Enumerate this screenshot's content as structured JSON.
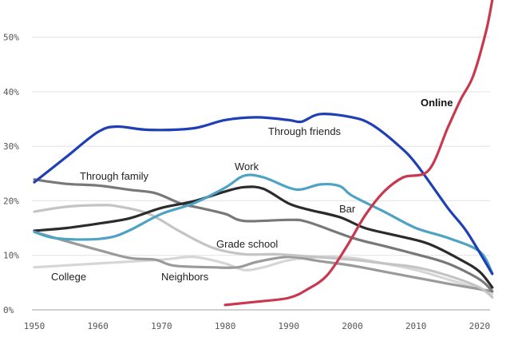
{
  "chart_data": {
    "type": "line",
    "title": "",
    "xlabel": "",
    "ylabel": "",
    "xlim": [
      1950,
      2022
    ],
    "ylim": [
      0,
      55
    ],
    "grid": true,
    "xticks": [
      {
        "value": 1950,
        "label": "1950"
      },
      {
        "value": 1960,
        "label": "1960"
      },
      {
        "value": 1970,
        "label": "1970"
      },
      {
        "value": 1980,
        "label": "1980"
      },
      {
        "value": 1990,
        "label": "1990"
      },
      {
        "value": 2000,
        "label": "2000"
      },
      {
        "value": 2010,
        "label": "2010"
      },
      {
        "value": 2020,
        "label": "2020"
      }
    ],
    "yticks": [
      {
        "value": 0,
        "label": "0%"
      },
      {
        "value": 10,
        "label": "10%"
      },
      {
        "value": 20,
        "label": "20%"
      },
      {
        "value": 30,
        "label": "30%"
      },
      {
        "value": 40,
        "label": "40%"
      },
      {
        "value": 50,
        "label": "50%"
      }
    ],
    "series": [
      {
        "name": "College",
        "color": "#d6d6d6",
        "x": [
          1950,
          1960,
          1970,
          1975,
          1980,
          1983,
          1986,
          1990,
          1995,
          2000,
          2005,
          2010,
          2015,
          2020,
          2022
        ],
        "y": [
          7.8,
          8.5,
          9.2,
          9.7,
          8.5,
          7.3,
          7.8,
          9.1,
          9.7,
          9.5,
          8.5,
          7.3,
          5.6,
          3.8,
          2.9
        ]
      },
      {
        "name": "Neighbors",
        "color": "#9a9a9a",
        "x": [
          1950,
          1955,
          1960,
          1965,
          1969,
          1972,
          1978,
          1982,
          1985,
          1990,
          1995,
          2000,
          2005,
          2010,
          2015,
          2020,
          2022
        ],
        "y": [
          14.3,
          12.6,
          11,
          9.5,
          9.2,
          8.1,
          7.8,
          7.8,
          8.8,
          9.7,
          8.9,
          8.1,
          7,
          5.9,
          4.8,
          3.8,
          3.4
        ]
      },
      {
        "name": "Grade school",
        "color": "#c4c4c4",
        "x": [
          1950,
          1955,
          1960,
          1963,
          1968,
          1973,
          1978,
          1983,
          1988,
          1993,
          2000,
          2005,
          2010,
          2015,
          2020,
          2022
        ],
        "y": [
          18,
          18.9,
          19.2,
          19,
          17.6,
          14.3,
          11.4,
          10.2,
          10.2,
          9.8,
          9.2,
          8.5,
          7.8,
          6.3,
          4.1,
          2.3
        ]
      },
      {
        "name": "Through family",
        "color": "#787878",
        "x": [
          1950,
          1955,
          1960,
          1965,
          1969,
          1973,
          1976,
          1980,
          1983,
          1990,
          1993,
          2000,
          2005,
          2010,
          2015,
          2020,
          2022
        ],
        "y": [
          23.9,
          23.1,
          22.8,
          22,
          21.4,
          19.5,
          18.7,
          17.6,
          16.3,
          16.5,
          16.1,
          13.2,
          11.7,
          10.2,
          8.5,
          5.6,
          3.4
        ]
      },
      {
        "name": "Bar",
        "color": "#2b2b2b",
        "x": [
          1950,
          1955,
          1960,
          1965,
          1970,
          1975,
          1980,
          1983,
          1986,
          1990,
          1993,
          1998,
          2002,
          2007,
          2012,
          2017,
          2020,
          2022
        ],
        "y": [
          14.5,
          15,
          15.8,
          16.8,
          18.7,
          19.9,
          21.7,
          22.5,
          22.2,
          19.5,
          18.4,
          17,
          15,
          13.6,
          12.1,
          9.2,
          7,
          4.1
        ]
      },
      {
        "name": "Work",
        "color": "#4ea3c4",
        "x": [
          1950,
          1953,
          1958,
          1962,
          1965,
          1970,
          1975,
          1980,
          1983,
          1986,
          1990,
          1992,
          1995,
          1998,
          2000,
          2005,
          2010,
          2015,
          2020,
          2022
        ],
        "y": [
          14.3,
          13.2,
          12.9,
          13.3,
          14.6,
          17.6,
          19.5,
          22.4,
          24.6,
          24.3,
          22.4,
          22.1,
          23,
          22.7,
          20.9,
          18,
          15,
          13.2,
          10.7,
          6.7
        ]
      },
      {
        "name": "Through friends",
        "color": "#1f3fb5",
        "x": [
          1950,
          1955,
          1960,
          1963,
          1968,
          1975,
          1980,
          1985,
          1990,
          1992,
          1995,
          2000,
          2003,
          2007,
          2010,
          2015,
          2018,
          2022
        ],
        "y": [
          23.4,
          28,
          32.6,
          33.6,
          33,
          33.3,
          34.8,
          35.3,
          34.8,
          34.5,
          35.9,
          35.3,
          34,
          30.4,
          26.8,
          18.7,
          14.3,
          6.6
        ]
      },
      {
        "name": "Online",
        "color": "#c8384f",
        "x": [
          1980,
          1985,
          1990,
          1993,
          1996,
          1999,
          2002,
          2005,
          2008,
          2012,
          2015,
          2017,
          2019,
          2021,
          2022
        ],
        "y": [
          0.9,
          1.5,
          2.2,
          3.8,
          6.3,
          11.4,
          17.3,
          21.7,
          24.3,
          25.6,
          33.4,
          38.5,
          42.9,
          51,
          56.8
        ]
      }
    ]
  }
}
